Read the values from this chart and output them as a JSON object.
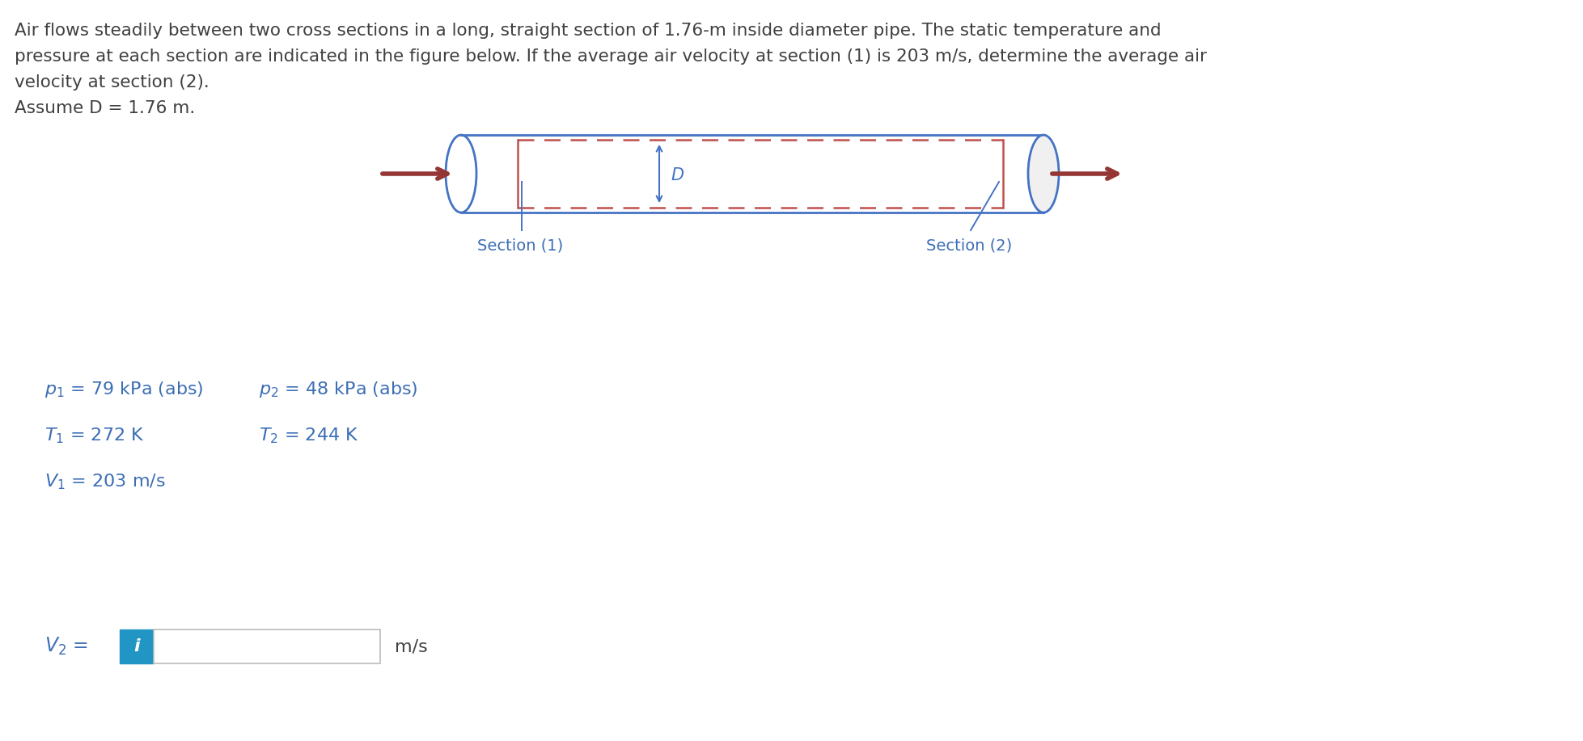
{
  "bg_color": "#ffffff",
  "text_color": "#4472c4",
  "dark_text": "#404040",
  "problem_text_line1": "Air flows steadily between two cross sections in a long, straight section of 1.76-m inside diameter pipe. The static temperature and",
  "problem_text_line2": "pressure at each section are indicated in the figure below. If the average air velocity at section (1) is 203 m/s, determine the average air",
  "problem_text_line3": "velocity at section (2).",
  "problem_text_line4": "Assume D = 1.76 m.",
  "section1_label": "Section (1)",
  "section2_label": "Section (2)",
  "D_label": "$D$",
  "pipe_color": "#4472c4",
  "pipe_dash_color": "#c0504d",
  "arrow_color": "#943634",
  "p1_text": "$p_1$ = 79 kPa (abs)",
  "p2_text": "$p_2$ = 48 kPa (abs)",
  "T1_text": "$T_1$ = 272 K",
  "T2_text": "$T_2$ = 244 K",
  "V1_text": "$V_1$ = 203 m/s",
  "V2_label": "$V_2$ =",
  "mps_label": "m/s",
  "info_icon_color": "#2196c4",
  "input_border_color": "#bbbbbb",
  "blue_text": "#3c6eb5"
}
